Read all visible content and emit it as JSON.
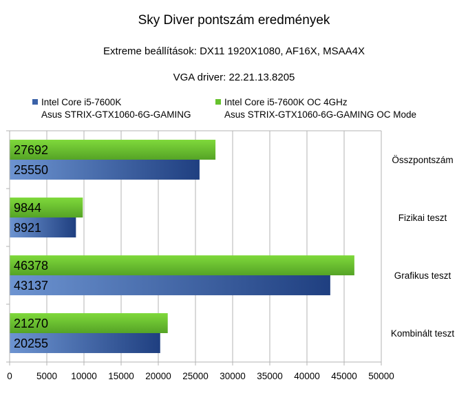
{
  "chart_data": {
    "type": "bar",
    "orientation": "horizontal",
    "title": "Sky Diver pontszám eredmények",
    "subtitle": "Extreme beállítások: DX11 1920X1080, AF16X, MSAA4X",
    "subtitle2": "VGA driver: 22.21.13.8205",
    "categories": [
      "Összpontszám",
      "Fizikai teszt",
      "Grafikus teszt",
      "Kombinált teszt"
    ],
    "series": [
      {
        "name_line1": "Intel Core i5-7600K",
        "name_line2": "Asus STRIX-GTX1060-6G-GAMING",
        "color": "#3b62a8",
        "values": [
          25550,
          8921,
          43137,
          20255
        ]
      },
      {
        "name_line1": "Intel Core i5-7600K OC 4GHz",
        "name_line2": "Asus STRIX-GTX1060-6G-GAMING OC Mode",
        "color": "#66c22d",
        "values": [
          27692,
          9844,
          46378,
          21270
        ]
      }
    ],
    "xlim": [
      0,
      50000
    ],
    "xticks": [
      "0",
      "5000",
      "10000",
      "15000",
      "20000",
      "25000",
      "30000",
      "35000",
      "40000",
      "45000",
      "50000"
    ],
    "grid": true,
    "legend_position": "top",
    "category_labels_position": "right"
  }
}
